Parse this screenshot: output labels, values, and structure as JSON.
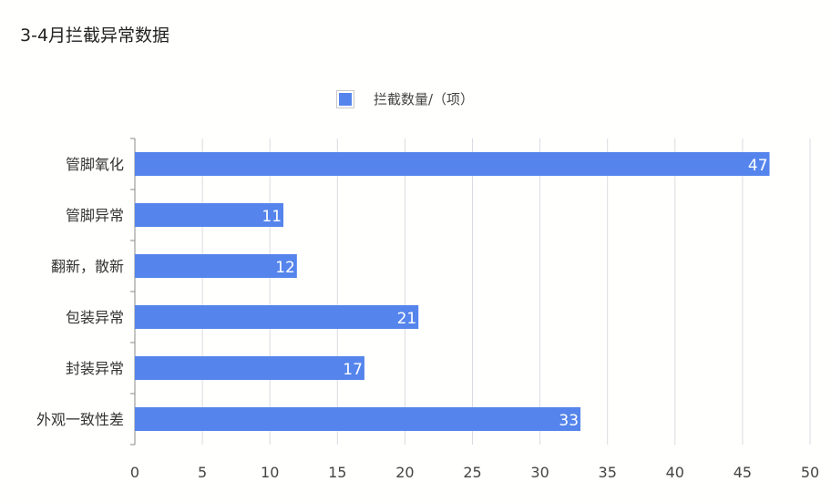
{
  "title": "3-4月拦截异常数据",
  "colors": {
    "bar": "#5585ec",
    "grid": "#d8dbe2",
    "axis": "#888888"
  },
  "chart_data": {
    "type": "bar",
    "orientation": "horizontal",
    "categories": [
      "管脚氧化",
      "管脚异常",
      "翻新，散新",
      "包装异常",
      "封装异常",
      "外观一致性差"
    ],
    "series": [
      {
        "name": "拦截数量/（项）",
        "values": [
          47,
          11,
          12,
          21,
          17,
          33
        ]
      }
    ],
    "xlim": [
      0,
      50
    ],
    "xticks": [
      0,
      5,
      10,
      15,
      20,
      25,
      30,
      35,
      40,
      45,
      50
    ],
    "data_labels": true,
    "grid": true,
    "legend_position": "top"
  }
}
